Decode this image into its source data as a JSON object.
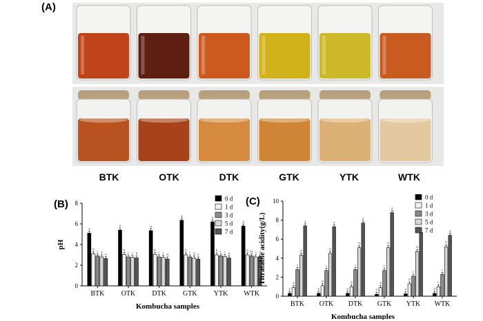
{
  "panels": {
    "a_label": "(A)",
    "b_label": "(B)",
    "c_label": "(C)"
  },
  "photo": {
    "samples": [
      "BTK",
      "OTK",
      "DTK",
      "GTK",
      "YTK",
      "WTK"
    ],
    "top_row_colors": [
      "#c0441a",
      "#5e1e12",
      "#cc5a1e",
      "#d2b21a",
      "#cdb82a",
      "#c95a20"
    ],
    "bottom_row_colors": [
      "#b85220",
      "#a8421a",
      "#d58a40",
      "#cf8436",
      "#dcb176",
      "#e4c9a0"
    ]
  },
  "chart_data": [
    {
      "type": "bar",
      "title": "",
      "xlabel": "Kombucha samples",
      "ylabel": "pH",
      "ylim": [
        0,
        8
      ],
      "yticks": [
        "0",
        "2",
        "4",
        "6",
        "8"
      ],
      "categories": [
        "BTK",
        "OTK",
        "DTK",
        "GTK",
        "YTK",
        "WTK"
      ],
      "legend_position": "top-right",
      "series": [
        {
          "name": "0 d",
          "color": "#000000",
          "values": [
            5.1,
            5.4,
            5.35,
            6.35,
            6.2,
            5.8
          ]
        },
        {
          "name": "1 d",
          "color": "#f2f2f2",
          "values": [
            3.1,
            3.05,
            3.05,
            3.0,
            3.0,
            3.0
          ]
        },
        {
          "name": "3 d",
          "color": "#8a8a8a",
          "values": [
            2.9,
            2.8,
            2.8,
            2.8,
            2.9,
            2.9
          ]
        },
        {
          "name": "5 d",
          "color": "#d9d9d9",
          "values": [
            2.8,
            2.75,
            2.75,
            2.7,
            2.85,
            2.8
          ]
        },
        {
          "name": "7 d",
          "color": "#555555",
          "values": [
            2.65,
            2.7,
            2.6,
            2.6,
            2.7,
            2.8
          ]
        }
      ],
      "bar_letters": [
        [
          "a",
          "b",
          "c",
          "d",
          "e"
        ],
        [
          "a",
          "b",
          "c",
          "c",
          "d"
        ],
        [
          "a",
          "b",
          "c",
          "c",
          "d"
        ],
        [
          "a",
          "b",
          "c",
          "d",
          "e"
        ],
        [
          "a",
          "b",
          "c",
          "c",
          "d"
        ],
        [
          "a",
          "b",
          "bc",
          "c",
          "d"
        ]
      ]
    },
    {
      "type": "bar",
      "title": "",
      "xlabel": "Kombucha samples",
      "ylabel": "Titratable acidity(g/L)",
      "ylim": [
        0,
        10
      ],
      "yticks": [
        "0",
        "2",
        "4",
        "6",
        "8",
        "10"
      ],
      "categories": [
        "BTK",
        "OTK",
        "DTK",
        "GTK",
        "YTK",
        "WTK"
      ],
      "legend_position": "top-right",
      "series": [
        {
          "name": "0 d",
          "color": "#000000",
          "values": [
            0.3,
            0.3,
            0.3,
            0.2,
            0.25,
            0.3
          ]
        },
        {
          "name": "1 d",
          "color": "#f2f2f2",
          "values": [
            0.9,
            1.1,
            1.0,
            0.9,
            1.3,
            1.0
          ]
        },
        {
          "name": "3 d",
          "color": "#8a8a8a",
          "values": [
            2.8,
            2.7,
            2.8,
            2.7,
            2.1,
            2.3
          ]
        },
        {
          "name": "5 d",
          "color": "#d9d9d9",
          "values": [
            4.3,
            4.5,
            5.1,
            5.1,
            4.7,
            5.2
          ]
        },
        {
          "name": "7 d",
          "color": "#555555",
          "values": [
            7.4,
            7.3,
            7.7,
            8.8,
            6.7,
            6.4
          ]
        }
      ],
      "bar_letters": [
        [
          "e",
          "d",
          "c",
          "b",
          "a"
        ],
        [
          "e",
          "d",
          "c",
          "b",
          "a"
        ],
        [
          "e",
          "d",
          "c",
          "b",
          "a"
        ],
        [
          "e",
          "d",
          "c",
          "b",
          "a"
        ],
        [
          "e",
          "d",
          "c",
          "b",
          "a"
        ],
        [
          "d",
          "c",
          "c",
          "b",
          "a"
        ]
      ]
    }
  ]
}
